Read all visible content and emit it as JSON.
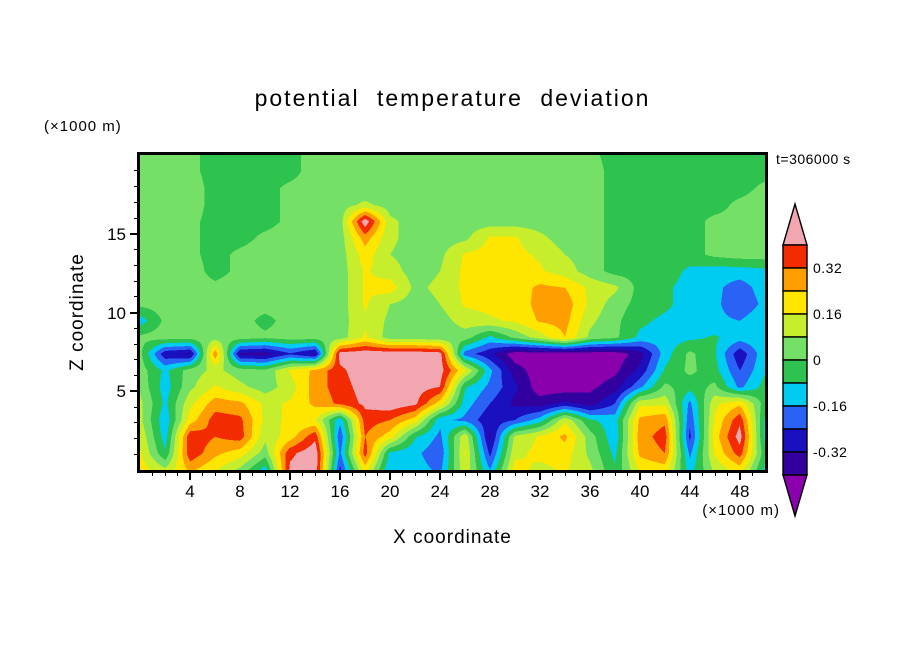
{
  "title": "potential temperature deviation",
  "time_label": "t=306000 s",
  "axes": {
    "x_label": "X coordinate",
    "x_unit": "(×1000 m)",
    "y_label": "Z coordinate",
    "y_unit": "(×1000 m)"
  },
  "chart_data": {
    "type": "heatmap",
    "title": "potential temperature deviation",
    "xlabel": "X coordinate (×1000 m)",
    "ylabel": "Z coordinate (×1000 m)",
    "annotation": "t=306000 s",
    "x_range": [
      0,
      50
    ],
    "z_range": [
      0,
      20
    ],
    "x_ticks": [
      4,
      8,
      12,
      16,
      20,
      24,
      28,
      32,
      36,
      40,
      44,
      48
    ],
    "z_ticks": [
      5,
      10,
      15
    ],
    "levels": [
      -0.4,
      -0.32,
      -0.24,
      -0.16,
      -0.08,
      0,
      0.08,
      0.16,
      0.24,
      0.32,
      0.4
    ],
    "colors": [
      "#8A00AC",
      "#3300A0",
      "#1A10C0",
      "#2A62F5",
      "#00CCF2",
      "#2EC24E",
      "#74E066",
      "#C6EE2C",
      "#FFE600",
      "#FF9E00",
      "#F22B00",
      "#F2A6B0"
    ],
    "colorbar_labels": [
      {
        "text": "0.32",
        "value": 0.32
      },
      {
        "text": "0.16",
        "value": 0.16
      },
      {
        "text": "0",
        "value": 0
      },
      {
        "text": "-0.16",
        "value": -0.16
      },
      {
        "text": "-0.32",
        "value": -0.32
      }
    ],
    "grid": {
      "x_start": 0,
      "x_step": 2,
      "z_top": 20,
      "z_bottom": 0,
      "order": "rows top-to-bottom",
      "values": [
        [
          0.04,
          0.04,
          0.02,
          -0.03,
          -0.03,
          -0.03,
          -0.03,
          0.04,
          0.04,
          0.02,
          0.02,
          0.04,
          0.04,
          0.04,
          0.04,
          0.04,
          0.04,
          0.04,
          0.02,
          -0.03,
          -0.03,
          -0.03,
          -0.03,
          -0.03,
          -0.03,
          -0.03
        ],
        [
          0.04,
          0.04,
          0.02,
          -0.03,
          -0.05,
          -0.03,
          -0.03,
          0.04,
          0.04,
          0.02,
          0.02,
          0.04,
          0.04,
          0.04,
          0.04,
          0.04,
          0.04,
          0.04,
          0.04,
          -0.03,
          -0.05,
          -0.03,
          -0.03,
          -0.03,
          -0.03,
          -0.03
        ],
        [
          0.04,
          0.04,
          0.04,
          -0.03,
          -0.05,
          -0.03,
          0.02,
          0.04,
          0.04,
          0.02,
          0.02,
          0.04,
          0.04,
          0.04,
          0.04,
          0.04,
          0.04,
          0.04,
          0.04,
          -0.03,
          -0.05,
          -0.03,
          -0.03,
          -0.03,
          -0.03,
          0.02
        ],
        [
          0.04,
          0.04,
          0.04,
          -0.03,
          -0.03,
          -0.03,
          0.02,
          0.04,
          0.04,
          0.1,
          0.04,
          0.04,
          0.04,
          0.04,
          0.04,
          0.04,
          0.04,
          0.04,
          0.04,
          -0.03,
          -0.03,
          -0.03,
          -0.03,
          -0.03,
          0.02,
          0.04
        ],
        [
          0.04,
          0.04,
          0.02,
          -0.03,
          -0.03,
          -0.03,
          0.02,
          0.04,
          0.04,
          0.46,
          0.1,
          0.04,
          0.04,
          0.04,
          0.04,
          0.04,
          0.04,
          0.04,
          0.04,
          -0.03,
          -0.03,
          -0.03,
          -0.03,
          0.02,
          0.02,
          0.04
        ],
        [
          0.04,
          0.04,
          0.02,
          -0.03,
          -0.03,
          0.02,
          0.04,
          0.04,
          0.04,
          0.28,
          0.1,
          0.04,
          0.04,
          0.06,
          0.17,
          0.17,
          0.1,
          0.04,
          0.04,
          -0.03,
          -0.03,
          -0.03,
          -0.03,
          0.02,
          0.02,
          0.04
        ],
        [
          0.04,
          0.04,
          0.02,
          -0.03,
          0.02,
          0.04,
          0.04,
          0.04,
          0.04,
          0.2,
          0.08,
          0.04,
          0.06,
          0.17,
          0.19,
          0.18,
          0.15,
          0.08,
          0.04,
          -0.03,
          -0.03,
          -0.03,
          -0.03,
          0.02,
          0.04,
          0.04
        ],
        [
          0.04,
          0.04,
          0.04,
          -0.03,
          0.02,
          0.04,
          0.04,
          0.04,
          0.04,
          0.17,
          0.12,
          0.04,
          0.08,
          0.18,
          0.19,
          0.18,
          0.17,
          0.12,
          0.04,
          -0.03,
          -0.03,
          -0.03,
          -0.1,
          -0.12,
          -0.12,
          -0.1
        ],
        [
          0.04,
          0.04,
          0.04,
          0.02,
          0.04,
          0.04,
          0.04,
          0.04,
          0.04,
          0.17,
          0.2,
          0.06,
          0.1,
          0.18,
          0.19,
          0.19,
          0.26,
          0.24,
          0.14,
          0.1,
          -0.03,
          -0.06,
          -0.12,
          -0.14,
          -0.2,
          -0.12
        ],
        [
          0.02,
          0.04,
          0.04,
          0.02,
          0.04,
          0.04,
          0.04,
          0.04,
          0.04,
          0.17,
          0.08,
          0.04,
          0.08,
          0.17,
          0.18,
          0.19,
          0.27,
          0.29,
          0.14,
          0.04,
          -0.03,
          -0.06,
          -0.12,
          -0.14,
          -0.22,
          -0.14
        ],
        [
          -0.12,
          0.02,
          0.04,
          0.02,
          0.04,
          -0.03,
          0.04,
          0.04,
          0.04,
          0.15,
          0.06,
          0.04,
          0.04,
          0.12,
          0.15,
          0.17,
          0.25,
          0.27,
          0.1,
          0.02,
          -0.06,
          -0.1,
          -0.12,
          -0.14,
          -0.16,
          -0.1
        ],
        [
          0.02,
          0.04,
          0.04,
          0.04,
          0.04,
          0.02,
          0.04,
          0.04,
          0.04,
          0.17,
          0.04,
          0.04,
          0.02,
          0.04,
          -0.1,
          0.02,
          0.12,
          0.24,
          0.06,
          0.02,
          -0.1,
          -0.12,
          -0.1,
          -0.07,
          -0.12,
          -0.09
        ],
        [
          0.02,
          -0.3,
          -0.34,
          0.3,
          -0.34,
          -0.36,
          -0.25,
          -0.34,
          0.44,
          0.46,
          0.46,
          0.46,
          0.44,
          -0.2,
          -0.3,
          -0.45,
          -0.45,
          -0.45,
          -0.45,
          -0.45,
          -0.36,
          -0.12,
          0.02,
          -0.07,
          -0.3,
          -0.1
        ],
        [
          0.04,
          -0.1,
          0.04,
          0.1,
          0.04,
          0.02,
          0.17,
          0.26,
          0.38,
          0.46,
          0.46,
          0.46,
          0.44,
          0.17,
          -0.14,
          -0.36,
          -0.45,
          -0.45,
          -0.45,
          -0.42,
          -0.3,
          -0.07,
          0.02,
          -0.05,
          -0.24,
          -0.09
        ],
        [
          0.06,
          -0.12,
          0.06,
          0.17,
          0.1,
          0.04,
          0.12,
          0.28,
          0.36,
          0.44,
          0.46,
          0.44,
          0.4,
          -0.07,
          -0.18,
          -0.3,
          -0.45,
          -0.45,
          -0.42,
          -0.36,
          -0.18,
          0.02,
          -0.05,
          0.02,
          -0.18,
          -0.05
        ],
        [
          0.1,
          -0.1,
          0.14,
          0.28,
          0.26,
          0.14,
          0.17,
          0.26,
          0.34,
          0.42,
          0.46,
          0.42,
          0.2,
          -0.12,
          -0.24,
          -0.34,
          -0.36,
          -0.3,
          -0.36,
          -0.24,
          0.14,
          0.14,
          -0.18,
          0.14,
          0.22,
          -0.04
        ],
        [
          0.1,
          -0.14,
          0.2,
          0.36,
          0.34,
          0.14,
          0.17,
          0.17,
          -0.14,
          0.36,
          0.32,
          0.2,
          -0.14,
          -0.18,
          -0.3,
          -0.24,
          -0.12,
          0.14,
          -0.07,
          -0.12,
          0.26,
          0.3,
          -0.22,
          0.17,
          0.38,
          -0.09
        ],
        [
          0.14,
          -0.12,
          0.38,
          0.32,
          0.36,
          0.1,
          0.2,
          0.38,
          -0.22,
          0.32,
          0.2,
          -0.07,
          -0.18,
          0.14,
          -0.34,
          0.1,
          0.17,
          0.26,
          0.04,
          -0.14,
          0.28,
          0.36,
          -0.26,
          0.2,
          0.44,
          -0.1
        ],
        [
          0.17,
          -0.07,
          0.38,
          0.26,
          0.2,
          0.04,
          0.38,
          0.46,
          -0.18,
          0.36,
          -0.1,
          -0.14,
          -0.22,
          0.17,
          -0.26,
          0.14,
          0.18,
          0.2,
          0.06,
          -0.1,
          0.26,
          0.32,
          -0.18,
          0.17,
          0.36,
          -0.05
        ],
        [
          0.2,
          0.1,
          0.26,
          0.17,
          0.06,
          -0.12,
          0.42,
          0.46,
          -0.26,
          0.2,
          -0.16,
          -0.12,
          -0.18,
          0.14,
          -0.16,
          0.19,
          0.14,
          0.17,
          0.1,
          -0.07,
          0.17,
          0.2,
          -0.12,
          0.1,
          0.2,
          -0.1
        ]
      ]
    }
  }
}
